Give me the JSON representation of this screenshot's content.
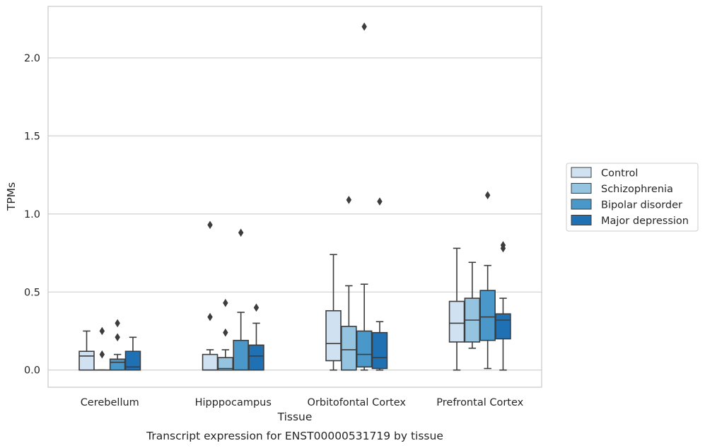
{
  "chart_data": {
    "type": "box",
    "title": "",
    "caption": "Transcript expression for ENST00000531719 by tissue",
    "xlabel": "Tissue",
    "ylabel": "TPMs",
    "ylim": [
      -0.11,
      2.33
    ],
    "yticks": [
      "0.0",
      "0.5",
      "1.0",
      "1.5",
      "2.0"
    ],
    "grid": "horizontal",
    "legend_position": "right",
    "categories": [
      "Cerebellum",
      "Hipppocampus",
      "Orbitofontal Cortex",
      "Prefrontal Cortex"
    ],
    "series": [
      {
        "name": "Control",
        "color": "#d0e1f2",
        "boxes": [
          {
            "q1": 0.0,
            "median": 0.09,
            "q3": 0.12,
            "whislo": 0.0,
            "whishi": 0.25,
            "fliers": []
          },
          {
            "q1": 0.0,
            "median": 0.0,
            "q3": 0.1,
            "whislo": 0.0,
            "whishi": 0.13,
            "fliers": [
              0.93,
              0.34
            ]
          },
          {
            "q1": 0.06,
            "median": 0.17,
            "q3": 0.38,
            "whislo": 0.0,
            "whishi": 0.74,
            "fliers": []
          },
          {
            "q1": 0.18,
            "median": 0.3,
            "q3": 0.44,
            "whislo": 0.0,
            "whishi": 0.78,
            "fliers": []
          }
        ]
      },
      {
        "name": "Schizophrenia",
        "color": "#94c4df",
        "boxes": [
          {
            "q1": 0.0,
            "median": 0.0,
            "q3": 0.0,
            "whislo": 0.0,
            "whishi": 0.0,
            "fliers": [
              0.25,
              0.1
            ]
          },
          {
            "q1": 0.0,
            "median": 0.01,
            "q3": 0.08,
            "whislo": 0.0,
            "whishi": 0.13,
            "fliers": [
              0.43,
              0.24
            ]
          },
          {
            "q1": 0.0,
            "median": 0.13,
            "q3": 0.28,
            "whislo": 0.0,
            "whishi": 0.54,
            "fliers": [
              1.09
            ]
          },
          {
            "q1": 0.18,
            "median": 0.32,
            "q3": 0.46,
            "whislo": 0.14,
            "whishi": 0.69,
            "fliers": []
          }
        ]
      },
      {
        "name": "Bipolar disorder",
        "color": "#4a98c9",
        "boxes": [
          {
            "q1": 0.0,
            "median": 0.05,
            "q3": 0.07,
            "whislo": 0.0,
            "whishi": 0.1,
            "fliers": [
              0.3,
              0.21
            ]
          },
          {
            "q1": 0.0,
            "median": 0.0,
            "q3": 0.19,
            "whislo": 0.0,
            "whishi": 0.37,
            "fliers": [
              0.88
            ]
          },
          {
            "q1": 0.02,
            "median": 0.1,
            "q3": 0.25,
            "whislo": 0.0,
            "whishi": 0.55,
            "fliers": [
              2.2
            ]
          },
          {
            "q1": 0.19,
            "median": 0.34,
            "q3": 0.51,
            "whislo": 0.01,
            "whishi": 0.67,
            "fliers": [
              1.12
            ]
          }
        ]
      },
      {
        "name": "Major depression",
        "color": "#2070b4",
        "boxes": [
          {
            "q1": 0.0,
            "median": 0.02,
            "q3": 0.12,
            "whislo": 0.0,
            "whishi": 0.21,
            "fliers": []
          },
          {
            "q1": 0.0,
            "median": 0.09,
            "q3": 0.16,
            "whislo": 0.0,
            "whishi": 0.3,
            "fliers": [
              0.4
            ]
          },
          {
            "q1": 0.01,
            "median": 0.08,
            "q3": 0.24,
            "whislo": 0.0,
            "whishi": 0.31,
            "fliers": [
              1.08
            ]
          },
          {
            "q1": 0.2,
            "median": 0.32,
            "q3": 0.36,
            "whislo": 0.0,
            "whishi": 0.46,
            "fliers": [
              0.8,
              0.78
            ]
          }
        ]
      }
    ]
  }
}
